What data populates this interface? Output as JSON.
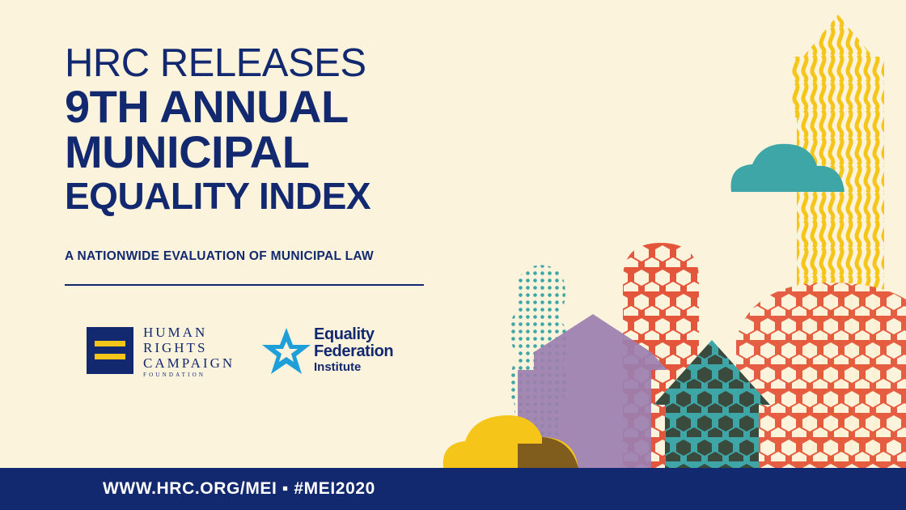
{
  "headline": {
    "line1": "HRC RELEASES",
    "line2": "9TH ANNUAL",
    "line3": "MUNICIPAL",
    "line4": "EQUALITY INDEX"
  },
  "subtitle": "A NATIONWIDE EVALUATION OF MUNICIPAL LAW",
  "hrc_logo": {
    "line1": "HUMAN",
    "line2": "RIGHTS",
    "line3": "CAMPAIGN",
    "line4": "FOUNDATION",
    "icon": "equal-sign-logo-icon"
  },
  "efi_logo": {
    "line1": "Equality",
    "line2": "Federation",
    "line3": "Institute",
    "icon": "star-logo-icon"
  },
  "footer": {
    "text": "WWW.HRC.ORG/MEI ▪ #MEI2020"
  },
  "colors": {
    "background": "#fbf3dc",
    "navy": "#13296f",
    "yellow": "#f5c51a",
    "teal": "#3ea6a6",
    "orange_red": "#e4563b",
    "purple": "#9b7fb0",
    "star_blue": "#1f9fd9"
  }
}
